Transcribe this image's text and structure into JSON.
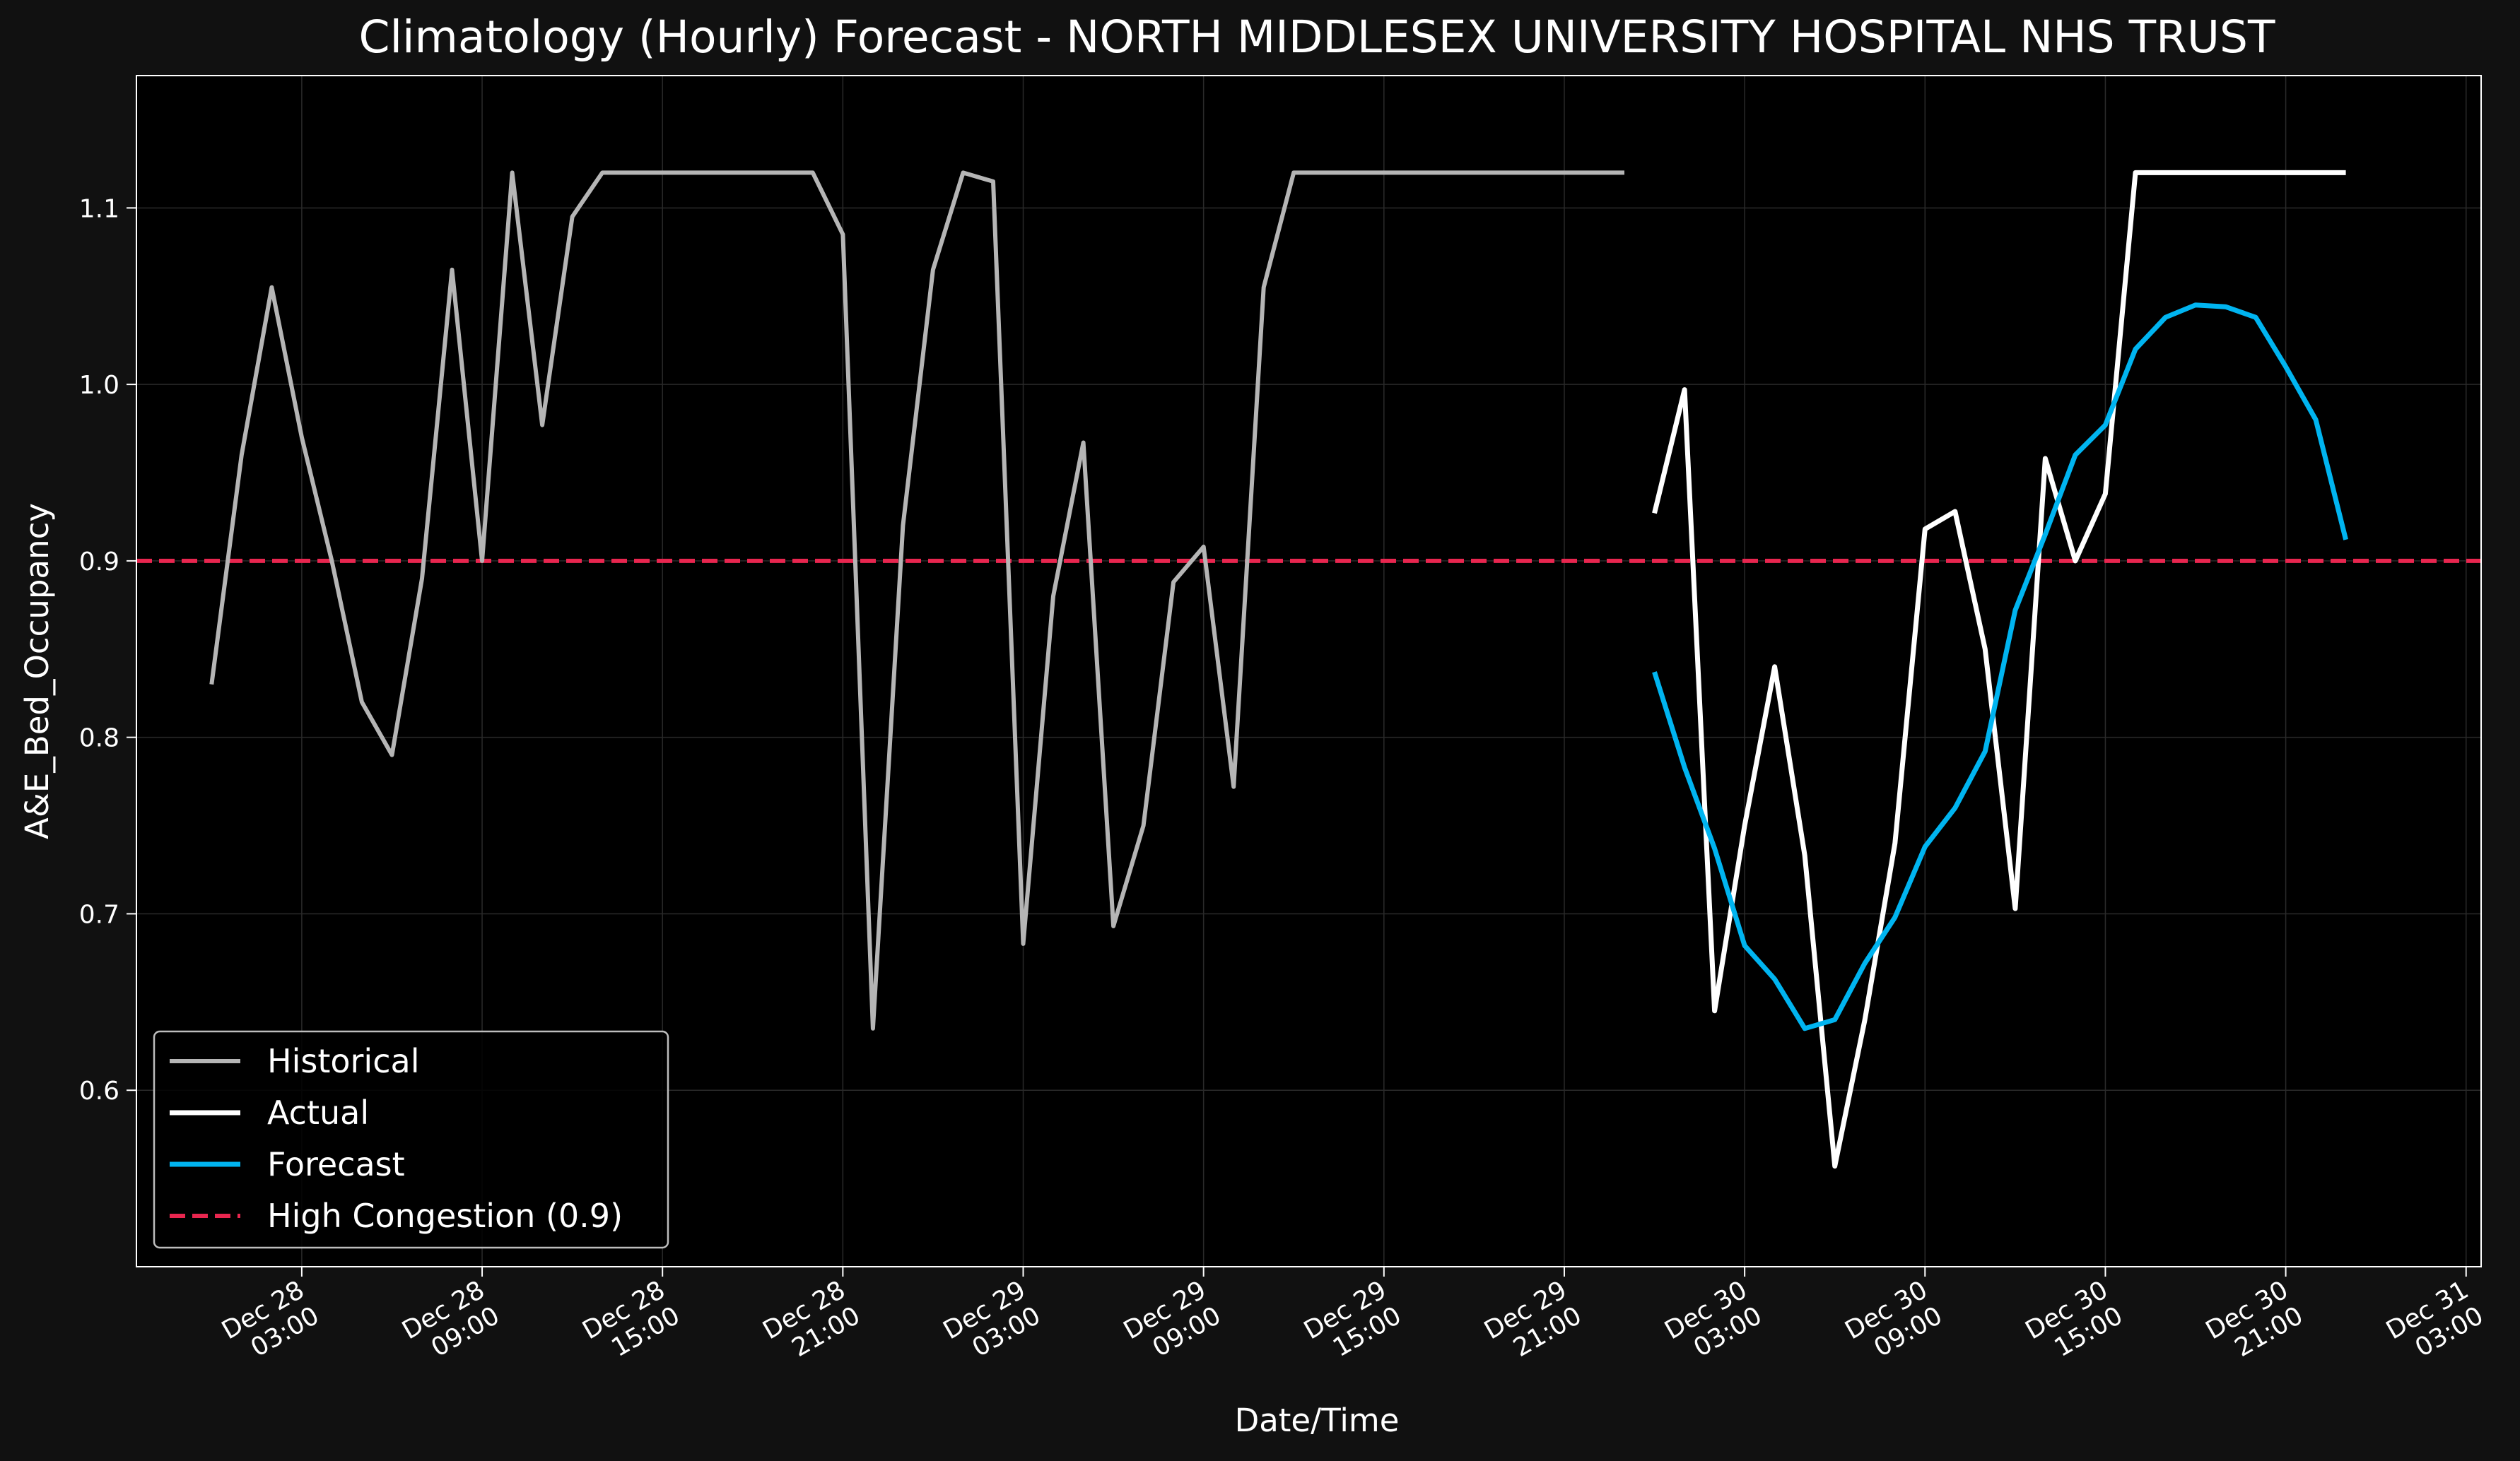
{
  "chart_data": {
    "type": "line",
    "title": "Climatology (Hourly) Forecast - NORTH MIDDLESEX UNIVERSITY HOSPITAL NHS TRUST",
    "xlabel": "Date/Time",
    "ylabel": "A&E_Bed_Occupancy",
    "xlim": [
      "2023-12-27 21:30",
      "2023-12-31 03:30"
    ],
    "ylim": [
      0.5,
      1.175
    ],
    "x_ticks": [
      {
        "t": "2023-12-28 03:00",
        "label": [
          "Dec 28",
          "03:00"
        ]
      },
      {
        "t": "2023-12-28 09:00",
        "label": [
          "Dec 28",
          "09:00"
        ]
      },
      {
        "t": "2023-12-28 15:00",
        "label": [
          "Dec 28",
          "15:00"
        ]
      },
      {
        "t": "2023-12-28 21:00",
        "label": [
          "Dec 28",
          "21:00"
        ]
      },
      {
        "t": "2023-12-29 03:00",
        "label": [
          "Dec 29",
          "03:00"
        ]
      },
      {
        "t": "2023-12-29 09:00",
        "label": [
          "Dec 29",
          "09:00"
        ]
      },
      {
        "t": "2023-12-29 15:00",
        "label": [
          "Dec 29",
          "15:00"
        ]
      },
      {
        "t": "2023-12-29 21:00",
        "label": [
          "Dec 29",
          "21:00"
        ]
      },
      {
        "t": "2023-12-30 03:00",
        "label": [
          "Dec 30",
          "03:00"
        ]
      },
      {
        "t": "2023-12-30 09:00",
        "label": [
          "Dec 30",
          "09:00"
        ]
      },
      {
        "t": "2023-12-30 15:00",
        "label": [
          "Dec 30",
          "15:00"
        ]
      },
      {
        "t": "2023-12-30 21:00",
        "label": [
          "Dec 30",
          "21:00"
        ]
      },
      {
        "t": "2023-12-31 03:00",
        "label": [
          "Dec 31",
          "03:00"
        ]
      }
    ],
    "y_ticks": [
      {
        "v": 0.6,
        "label": "0.6"
      },
      {
        "v": 0.7,
        "label": "0.7"
      },
      {
        "v": 0.8,
        "label": "0.8"
      },
      {
        "v": 0.9,
        "label": "0.9"
      },
      {
        "v": 1.0,
        "label": "1.0"
      },
      {
        "v": 1.1,
        "label": "1.1"
      }
    ],
    "grid": true,
    "legend_position": "lower-left",
    "series": [
      {
        "name": "Historical",
        "color": "#b5b5b5",
        "points": [
          [
            "2023-12-28 00:00",
            0.83
          ],
          [
            "2023-12-28 01:00",
            0.96
          ],
          [
            "2023-12-28 02:00",
            1.055
          ],
          [
            "2023-12-28 03:00",
            0.97
          ],
          [
            "2023-12-28 04:00",
            0.9
          ],
          [
            "2023-12-28 05:00",
            0.82
          ],
          [
            "2023-12-28 06:00",
            0.79
          ],
          [
            "2023-12-28 07:00",
            0.89
          ],
          [
            "2023-12-28 08:00",
            1.065
          ],
          [
            "2023-12-28 09:00",
            0.9
          ],
          [
            "2023-12-28 10:00",
            1.12
          ],
          [
            "2023-12-28 11:00",
            0.977
          ],
          [
            "2023-12-28 12:00",
            1.095
          ],
          [
            "2023-12-28 13:00",
            1.12
          ],
          [
            "2023-12-28 14:00",
            1.12
          ],
          [
            "2023-12-28 15:00",
            1.12
          ],
          [
            "2023-12-28 16:00",
            1.12
          ],
          [
            "2023-12-28 17:00",
            1.12
          ],
          [
            "2023-12-28 18:00",
            1.12
          ],
          [
            "2023-12-28 19:00",
            1.12
          ],
          [
            "2023-12-28 20:00",
            1.12
          ],
          [
            "2023-12-28 21:00",
            1.085
          ],
          [
            "2023-12-28 22:00",
            0.635
          ],
          [
            "2023-12-28 23:00",
            0.92
          ],
          [
            "2023-12-29 00:00",
            1.065
          ],
          [
            "2023-12-29 01:00",
            1.12
          ],
          [
            "2023-12-29 02:00",
            1.115
          ],
          [
            "2023-12-29 03:00",
            0.683
          ],
          [
            "2023-12-29 04:00",
            0.88
          ],
          [
            "2023-12-29 05:00",
            0.967
          ],
          [
            "2023-12-29 06:00",
            0.693
          ],
          [
            "2023-12-29 07:00",
            0.75
          ],
          [
            "2023-12-29 08:00",
            0.888
          ],
          [
            "2023-12-29 09:00",
            0.908
          ],
          [
            "2023-12-29 10:00",
            0.772
          ],
          [
            "2023-12-29 11:00",
            1.055
          ],
          [
            "2023-12-29 12:00",
            1.12
          ],
          [
            "2023-12-29 13:00",
            1.12
          ],
          [
            "2023-12-29 14:00",
            1.12
          ],
          [
            "2023-12-29 15:00",
            1.12
          ],
          [
            "2023-12-29 16:00",
            1.12
          ],
          [
            "2023-12-29 17:00",
            1.12
          ],
          [
            "2023-12-29 18:00",
            1.12
          ],
          [
            "2023-12-29 19:00",
            1.12
          ],
          [
            "2023-12-29 20:00",
            1.12
          ],
          [
            "2023-12-29 21:00",
            1.12
          ],
          [
            "2023-12-29 22:00",
            1.12
          ],
          [
            "2023-12-29 23:00",
            1.12
          ]
        ]
      },
      {
        "name": "Actual",
        "color": "#ffffff",
        "points": [
          [
            "2023-12-30 00:00",
            0.927
          ],
          [
            "2023-12-30 01:00",
            0.997
          ],
          [
            "2023-12-30 02:00",
            0.645
          ],
          [
            "2023-12-30 03:00",
            0.75
          ],
          [
            "2023-12-30 04:00",
            0.84
          ],
          [
            "2023-12-30 05:00",
            0.733
          ],
          [
            "2023-12-30 06:00",
            0.557
          ],
          [
            "2023-12-30 07:00",
            0.64
          ],
          [
            "2023-12-30 08:00",
            0.74
          ],
          [
            "2023-12-30 09:00",
            0.918
          ],
          [
            "2023-12-30 10:00",
            0.928
          ],
          [
            "2023-12-30 11:00",
            0.85
          ],
          [
            "2023-12-30 12:00",
            0.703
          ],
          [
            "2023-12-30 13:00",
            0.958
          ],
          [
            "2023-12-30 14:00",
            0.9
          ],
          [
            "2023-12-30 15:00",
            0.938
          ],
          [
            "2023-12-30 16:00",
            1.12
          ],
          [
            "2023-12-30 17:00",
            1.12
          ],
          [
            "2023-12-30 18:00",
            1.12
          ],
          [
            "2023-12-30 19:00",
            1.12
          ],
          [
            "2023-12-30 20:00",
            1.12
          ],
          [
            "2023-12-30 21:00",
            1.12
          ],
          [
            "2023-12-30 22:00",
            1.12
          ],
          [
            "2023-12-30 23:00",
            1.12
          ]
        ]
      },
      {
        "name": "Forecast",
        "color": "#00b4f0",
        "points": [
          [
            "2023-12-30 00:00",
            0.837
          ],
          [
            "2023-12-30 01:00",
            0.783
          ],
          [
            "2023-12-30 02:00",
            0.737
          ],
          [
            "2023-12-30 03:00",
            0.682
          ],
          [
            "2023-12-30 04:00",
            0.663
          ],
          [
            "2023-12-30 05:00",
            0.635
          ],
          [
            "2023-12-30 06:00",
            0.64
          ],
          [
            "2023-12-30 07:00",
            0.672
          ],
          [
            "2023-12-30 08:00",
            0.698
          ],
          [
            "2023-12-30 09:00",
            0.738
          ],
          [
            "2023-12-30 10:00",
            0.76
          ],
          [
            "2023-12-30 11:00",
            0.792
          ],
          [
            "2023-12-30 12:00",
            0.872
          ],
          [
            "2023-12-30 13:00",
            0.915
          ],
          [
            "2023-12-30 14:00",
            0.96
          ],
          [
            "2023-12-30 15:00",
            0.977
          ],
          [
            "2023-12-30 16:00",
            1.02
          ],
          [
            "2023-12-30 17:00",
            1.038
          ],
          [
            "2023-12-30 18:00",
            1.045
          ],
          [
            "2023-12-30 19:00",
            1.044
          ],
          [
            "2023-12-30 20:00",
            1.038
          ],
          [
            "2023-12-30 21:00",
            1.01
          ],
          [
            "2023-12-30 22:00",
            0.98
          ],
          [
            "2023-12-30 23:00",
            0.912
          ]
        ]
      }
    ],
    "reference_line": {
      "name": "High Congestion (0.9)",
      "y": 0.9,
      "color": "#e8264f",
      "style": "dashed"
    },
    "legend": [
      "Historical",
      "Actual",
      "Forecast",
      "High Congestion (0.9)"
    ]
  }
}
